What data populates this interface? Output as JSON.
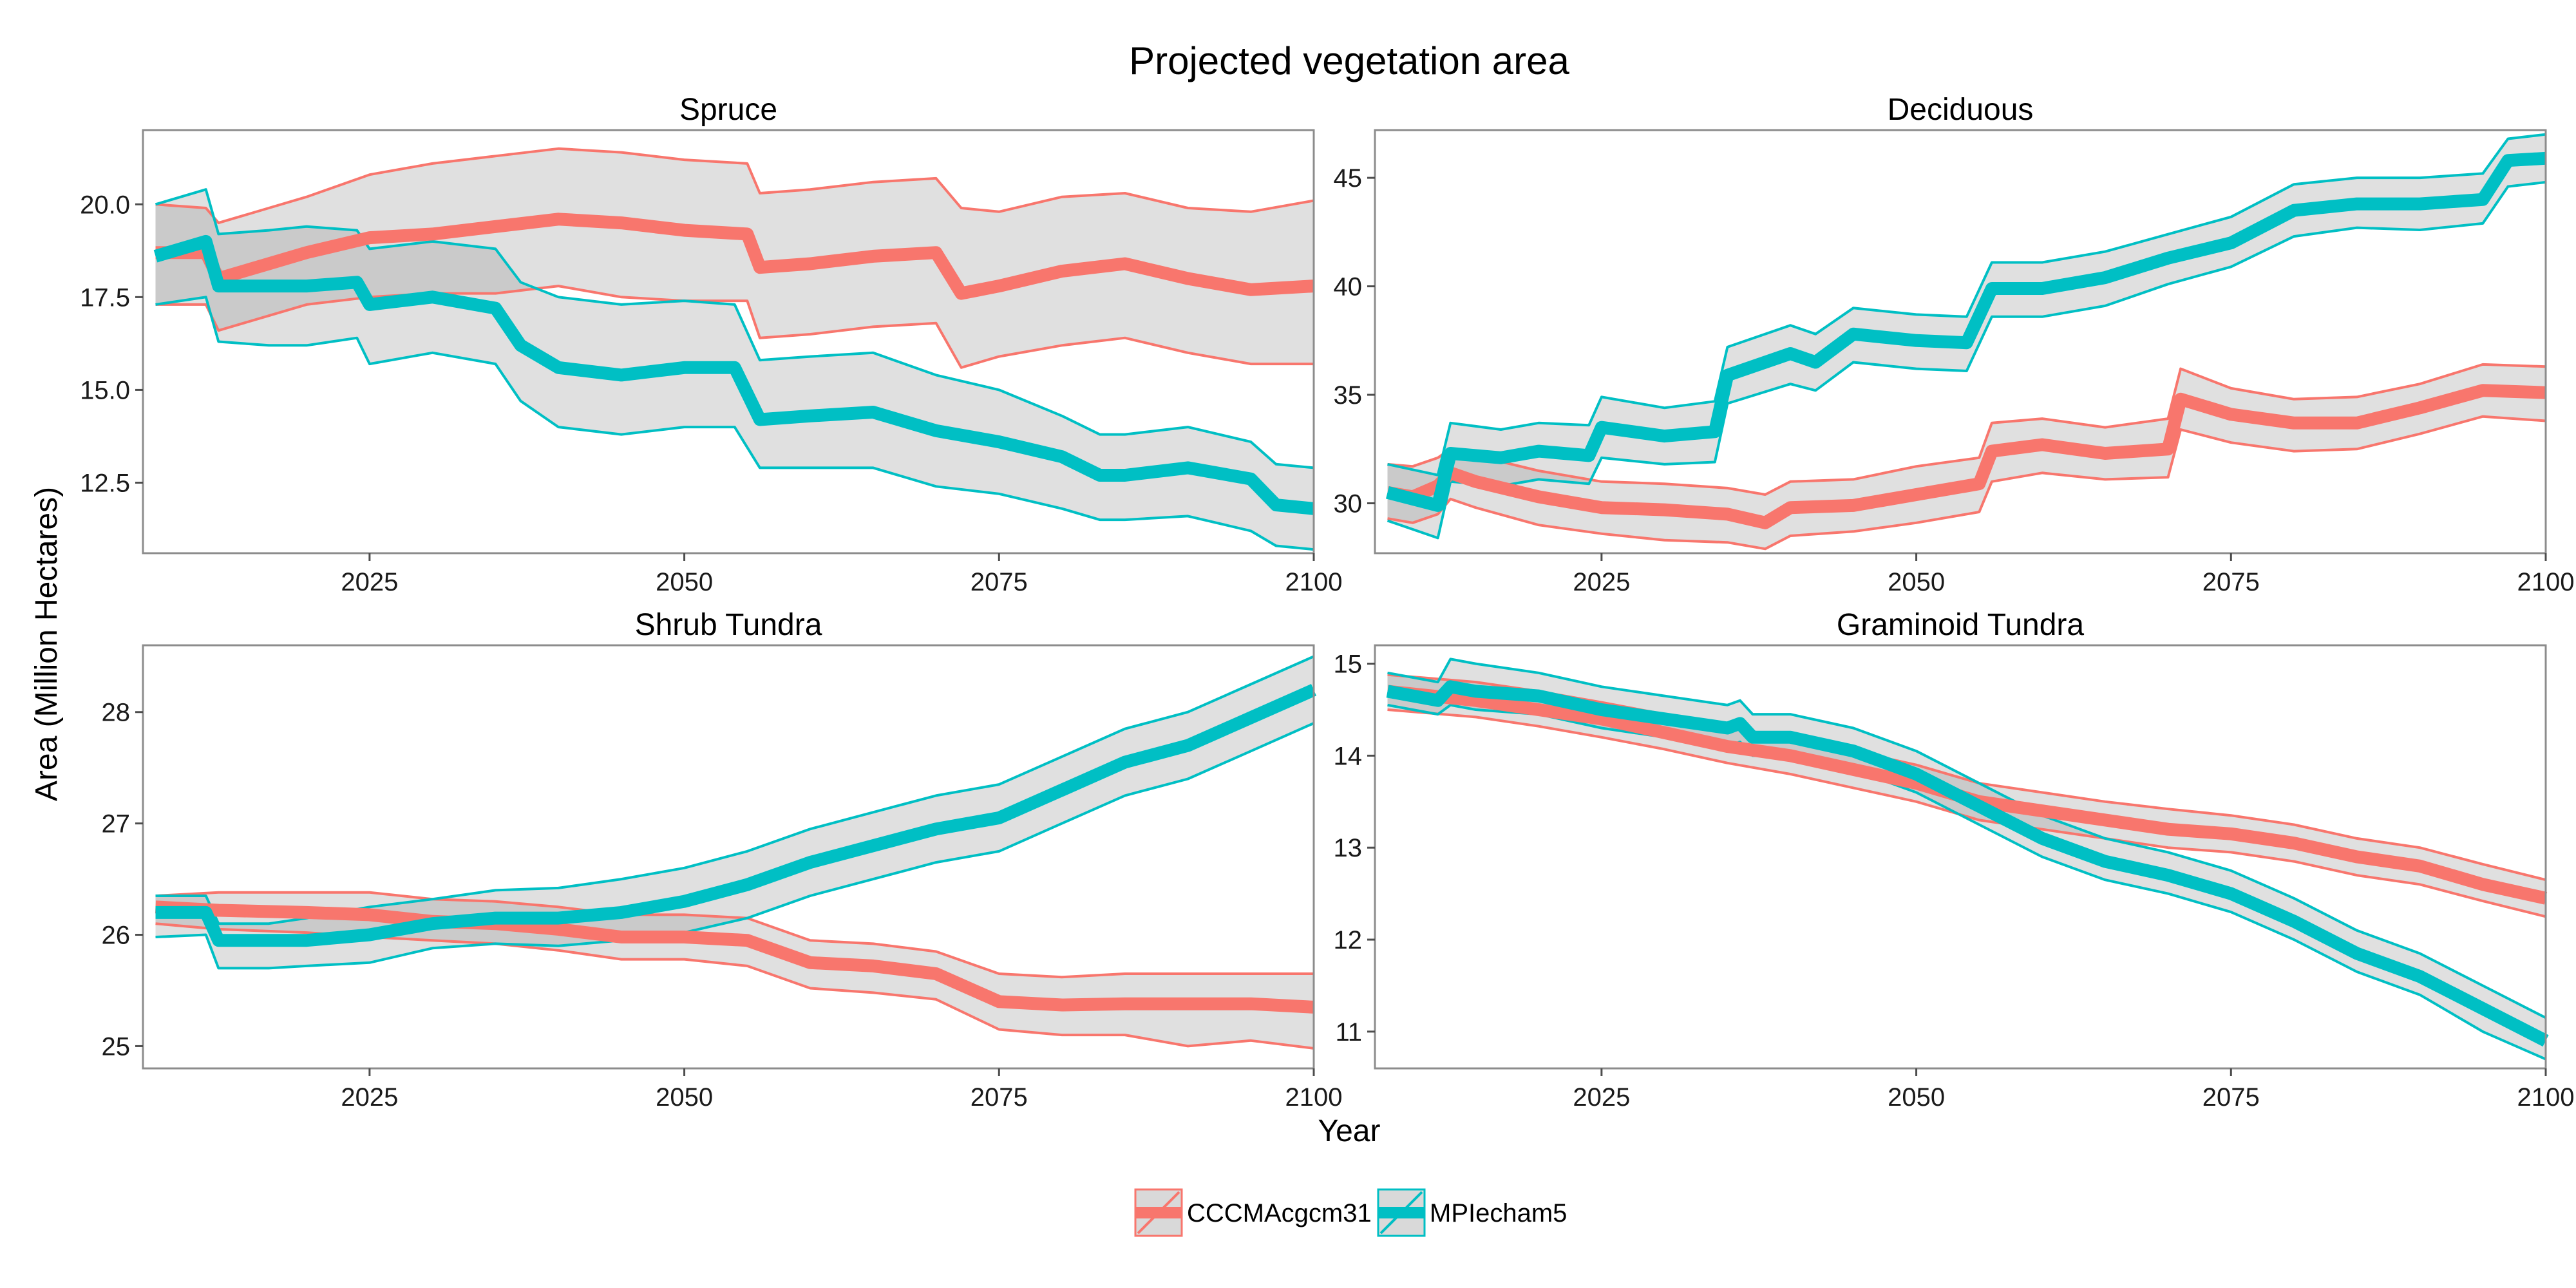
{
  "title": "Projected vegetation area",
  "xlabel": "Year",
  "ylabel": "Area (Million Hectares)",
  "legend": {
    "position": "bottom",
    "items": [
      {
        "label": "CCCMAcgcm31",
        "color": "#F8766D"
      },
      {
        "label": "MPIecham5",
        "color": "#00BFC4"
      }
    ]
  },
  "chart_data": [
    {
      "type": "line",
      "title": "Spruce",
      "xlim": [
        2007,
        2100
      ],
      "ylim": [
        10.6,
        22.0
      ],
      "xticks": [
        2025,
        2050,
        2075,
        2100
      ],
      "yticks": [
        12.5,
        15.0,
        17.5,
        20.0
      ],
      "ytick_labels": [
        "12.5",
        "15.0",
        "17.5",
        "20.0"
      ],
      "series": [
        {
          "name": "CCCMAcgcm31",
          "color": "#F8766D",
          "x": [
            2008,
            2012,
            2013,
            2017,
            2020,
            2025,
            2030,
            2035,
            2040,
            2045,
            2050,
            2055,
            2056,
            2060,
            2065,
            2070,
            2072,
            2075,
            2080,
            2085,
            2090,
            2095,
            2100
          ],
          "y": [
            18.7,
            18.7,
            18.0,
            18.4,
            18.7,
            19.1,
            19.2,
            19.4,
            19.6,
            19.5,
            19.3,
            19.2,
            18.3,
            18.4,
            18.6,
            18.7,
            17.6,
            17.8,
            18.2,
            18.4,
            18.0,
            17.7,
            17.8
          ],
          "upper": [
            20.0,
            19.9,
            19.5,
            19.9,
            20.2,
            20.8,
            21.1,
            21.3,
            21.5,
            21.4,
            21.2,
            21.1,
            20.3,
            20.4,
            20.6,
            20.7,
            19.9,
            19.8,
            20.2,
            20.3,
            19.9,
            19.8,
            20.1
          ],
          "lower": [
            17.3,
            17.3,
            16.6,
            17.0,
            17.3,
            17.5,
            17.6,
            17.6,
            17.8,
            17.5,
            17.4,
            17.4,
            16.4,
            16.5,
            16.7,
            16.8,
            15.6,
            15.9,
            16.2,
            16.4,
            16.0,
            15.7,
            15.7
          ]
        },
        {
          "name": "MPIecham5",
          "color": "#00BFC4",
          "x": [
            2008,
            2012,
            2013,
            2017,
            2020,
            2024,
            2025,
            2030,
            2035,
            2037,
            2040,
            2045,
            2050,
            2054,
            2056,
            2060,
            2065,
            2070,
            2075,
            2080,
            2083,
            2085,
            2090,
            2095,
            2097,
            2100
          ],
          "y": [
            18.6,
            19.0,
            17.8,
            17.8,
            17.8,
            17.9,
            17.3,
            17.5,
            17.2,
            16.2,
            15.6,
            15.4,
            15.6,
            15.6,
            14.2,
            14.3,
            14.4,
            13.9,
            13.6,
            13.2,
            12.7,
            12.7,
            12.9,
            12.6,
            11.9,
            11.8
          ],
          "upper": [
            20.0,
            20.4,
            19.2,
            19.3,
            19.4,
            19.3,
            18.8,
            19.0,
            18.8,
            17.9,
            17.5,
            17.3,
            17.4,
            17.3,
            15.8,
            15.9,
            16.0,
            15.4,
            15.0,
            14.3,
            13.8,
            13.8,
            14.0,
            13.6,
            13.0,
            12.9
          ],
          "lower": [
            17.3,
            17.5,
            16.3,
            16.2,
            16.2,
            16.4,
            15.7,
            16.0,
            15.7,
            14.7,
            14.0,
            13.8,
            14.0,
            14.0,
            12.9,
            12.9,
            12.9,
            12.4,
            12.2,
            11.8,
            11.5,
            11.5,
            11.6,
            11.2,
            10.8,
            10.7
          ]
        }
      ]
    },
    {
      "type": "line",
      "title": "Deciduous",
      "xlim": [
        2007,
        2100
      ],
      "ylim": [
        27.7,
        47.2
      ],
      "xticks": [
        2025,
        2050,
        2075,
        2100
      ],
      "yticks": [
        30,
        35,
        40,
        45
      ],
      "ytick_labels": [
        "30",
        "35",
        "40",
        "45"
      ],
      "series": [
        {
          "name": "CCCMAcgcm31",
          "color": "#F8766D",
          "x": [
            2008,
            2010,
            2012,
            2013,
            2015,
            2020,
            2025,
            2030,
            2035,
            2038,
            2040,
            2045,
            2050,
            2055,
            2056,
            2060,
            2065,
            2070,
            2071,
            2075,
            2080,
            2085,
            2090,
            2095,
            2100
          ],
          "y": [
            30.5,
            30.3,
            30.8,
            31.4,
            31.0,
            30.3,
            29.8,
            29.7,
            29.5,
            29.1,
            29.8,
            29.9,
            30.4,
            30.9,
            32.4,
            32.7,
            32.3,
            32.5,
            34.8,
            34.1,
            33.7,
            33.7,
            34.4,
            35.2,
            35.1
          ],
          "upper": [
            31.8,
            31.7,
            32.1,
            32.5,
            32.2,
            31.5,
            31.0,
            30.9,
            30.7,
            30.4,
            31.0,
            31.1,
            31.7,
            32.1,
            33.7,
            33.9,
            33.5,
            33.9,
            36.2,
            35.3,
            34.8,
            34.9,
            35.5,
            36.4,
            36.3
          ],
          "lower": [
            29.3,
            29.1,
            29.5,
            30.2,
            29.8,
            29.0,
            28.6,
            28.3,
            28.2,
            27.9,
            28.5,
            28.7,
            29.1,
            29.6,
            31.0,
            31.4,
            31.1,
            31.2,
            33.4,
            32.8,
            32.4,
            32.5,
            33.2,
            34.0,
            33.8
          ],
          "band_edges": [
            {
              "x": [
                2008,
                2012,
                2013,
                2020,
                2025,
                2030,
                2038,
                2040,
                2045,
                2050,
                2055,
                2056,
                2060,
                2065,
                2070,
                2071,
                2075,
                2080,
                2085,
                2090,
                2095,
                2100
              ],
              "y": [
                31.8,
                32.1,
                32.5,
                31.5,
                31.0,
                30.9,
                30.4,
                31.0,
                31.1,
                31.7,
                32.1,
                33.7,
                33.9,
                33.5,
                33.9,
                36.2,
                35.3,
                34.8,
                34.9,
                35.5,
                36.4,
                36.3
              ]
            }
          ]
        },
        {
          "name": "MPIecham5",
          "color": "#00BFC4",
          "x": [
            2008,
            2012,
            2013,
            2017,
            2020,
            2024,
            2025,
            2030,
            2034,
            2035,
            2040,
            2042,
            2045,
            2050,
            2054,
            2056,
            2060,
            2065,
            2070,
            2075,
            2080,
            2085,
            2090,
            2095,
            2097,
            2100
          ],
          "y": [
            30.5,
            29.9,
            32.3,
            32.1,
            32.4,
            32.2,
            33.5,
            33.1,
            33.3,
            35.9,
            36.9,
            36.5,
            37.8,
            37.5,
            37.4,
            39.9,
            39.9,
            40.4,
            41.3,
            42.0,
            43.5,
            43.8,
            43.8,
            44.0,
            45.8,
            45.9
          ],
          "upper": [
            31.8,
            31.3,
            33.7,
            33.4,
            33.7,
            33.6,
            34.9,
            34.4,
            34.7,
            37.2,
            38.2,
            37.8,
            39.0,
            38.7,
            38.6,
            41.1,
            41.1,
            41.6,
            42.4,
            43.2,
            44.7,
            45.0,
            45.0,
            45.2,
            46.8,
            47.0
          ],
          "lower": [
            29.2,
            28.4,
            31.0,
            30.8,
            31.1,
            30.9,
            32.1,
            31.8,
            31.9,
            34.6,
            35.5,
            35.2,
            36.5,
            36.2,
            36.1,
            38.6,
            38.6,
            39.1,
            40.1,
            40.9,
            42.3,
            42.7,
            42.6,
            42.9,
            44.6,
            44.8
          ]
        }
      ]
    },
    {
      "type": "line",
      "title": "Shrub Tundra",
      "xlim": [
        2007,
        2100
      ],
      "ylim": [
        24.8,
        28.6
      ],
      "xticks": [
        2025,
        2050,
        2075,
        2100
      ],
      "yticks": [
        25,
        26,
        27,
        28
      ],
      "ytick_labels": [
        "25",
        "26",
        "27",
        "28"
      ],
      "series": [
        {
          "name": "CCCMAcgcm31",
          "color": "#F8766D",
          "x": [
            2008,
            2013,
            2020,
            2025,
            2030,
            2035,
            2040,
            2045,
            2050,
            2055,
            2060,
            2065,
            2070,
            2075,
            2080,
            2085,
            2090,
            2095,
            2100
          ],
          "y": [
            26.25,
            26.22,
            26.2,
            26.18,
            26.12,
            26.1,
            26.05,
            25.98,
            25.98,
            25.95,
            25.75,
            25.72,
            25.65,
            25.4,
            25.37,
            25.38,
            25.38,
            25.38,
            25.35
          ],
          "upper": [
            26.35,
            26.38,
            26.38,
            26.38,
            26.32,
            26.3,
            26.25,
            26.18,
            26.18,
            26.15,
            25.95,
            25.92,
            25.85,
            25.65,
            25.62,
            25.65,
            25.65,
            25.65,
            25.65
          ],
          "lower": [
            26.1,
            26.05,
            26.02,
            25.98,
            25.95,
            25.92,
            25.86,
            25.78,
            25.78,
            25.72,
            25.52,
            25.48,
            25.42,
            25.15,
            25.1,
            25.1,
            25.0,
            25.05,
            24.98
          ]
        },
        {
          "name": "MPIecham5",
          "color": "#00BFC4",
          "x": [
            2008,
            2012,
            2013,
            2017,
            2020,
            2025,
            2030,
            2035,
            2040,
            2045,
            2050,
            2055,
            2060,
            2065,
            2070,
            2075,
            2080,
            2085,
            2090,
            2095,
            2100
          ],
          "y": [
            26.2,
            26.2,
            25.95,
            25.95,
            25.95,
            26.0,
            26.1,
            26.15,
            26.15,
            26.2,
            26.3,
            26.45,
            26.65,
            26.8,
            26.95,
            27.05,
            27.3,
            27.55,
            27.7,
            27.95,
            28.2
          ],
          "upper": [
            26.35,
            26.35,
            26.1,
            26.1,
            26.15,
            26.25,
            26.32,
            26.4,
            26.42,
            26.5,
            26.6,
            26.75,
            26.95,
            27.1,
            27.25,
            27.35,
            27.6,
            27.85,
            28.0,
            28.25,
            28.5
          ],
          "lower": [
            25.98,
            26.0,
            25.7,
            25.7,
            25.72,
            25.75,
            25.88,
            25.92,
            25.9,
            25.95,
            26.02,
            26.15,
            26.35,
            26.5,
            26.65,
            26.75,
            27.0,
            27.25,
            27.4,
            27.65,
            27.9
          ]
        }
      ]
    },
    {
      "type": "line",
      "title": "Graminoid Tundra",
      "xlim": [
        2007,
        2100
      ],
      "ylim": [
        10.6,
        15.2
      ],
      "xticks": [
        2025,
        2050,
        2075,
        2100
      ],
      "yticks": [
        11,
        12,
        13,
        14,
        15
      ],
      "ytick_labels": [
        "11",
        "12",
        "13",
        "14",
        "15"
      ],
      "series": [
        {
          "name": "CCCMAcgcm31",
          "color": "#F8766D",
          "x": [
            2008,
            2015,
            2020,
            2025,
            2030,
            2035,
            2040,
            2045,
            2050,
            2055,
            2060,
            2065,
            2070,
            2075,
            2080,
            2085,
            2090,
            2095,
            2100
          ],
          "y": [
            14.7,
            14.6,
            14.5,
            14.4,
            14.25,
            14.1,
            14.0,
            13.85,
            13.7,
            13.5,
            13.4,
            13.3,
            13.2,
            13.15,
            13.05,
            12.9,
            12.8,
            12.6,
            12.45
          ],
          "upper": [
            14.88,
            14.8,
            14.7,
            14.58,
            14.45,
            14.3,
            14.2,
            14.05,
            13.9,
            13.7,
            13.6,
            13.5,
            13.42,
            13.35,
            13.25,
            13.1,
            13.0,
            12.82,
            12.65
          ],
          "lower": [
            14.5,
            14.42,
            14.32,
            14.2,
            14.07,
            13.92,
            13.8,
            13.65,
            13.5,
            13.3,
            13.2,
            13.1,
            13.0,
            12.95,
            12.85,
            12.7,
            12.6,
            12.42,
            12.25
          ]
        },
        {
          "name": "MPIecham5",
          "color": "#00BFC4",
          "x": [
            2008,
            2012,
            2013,
            2015,
            2020,
            2025,
            2030,
            2035,
            2036,
            2037,
            2040,
            2045,
            2050,
            2055,
            2060,
            2065,
            2070,
            2075,
            2080,
            2085,
            2090,
            2095,
            2100
          ],
          "y": [
            14.7,
            14.6,
            14.75,
            14.7,
            14.65,
            14.5,
            14.4,
            14.3,
            14.35,
            14.2,
            14.2,
            14.05,
            13.8,
            13.45,
            13.1,
            12.85,
            12.7,
            12.5,
            12.2,
            11.85,
            11.6,
            11.25,
            10.9
          ],
          "upper": [
            14.9,
            14.8,
            15.05,
            15.0,
            14.9,
            14.75,
            14.65,
            14.55,
            14.6,
            14.45,
            14.45,
            14.3,
            14.05,
            13.7,
            13.35,
            13.1,
            12.95,
            12.75,
            12.45,
            12.1,
            11.85,
            11.5,
            11.15
          ],
          "lower": [
            14.55,
            14.45,
            14.55,
            14.5,
            14.45,
            14.3,
            14.2,
            14.1,
            14.15,
            14.0,
            14.0,
            13.85,
            13.6,
            13.25,
            12.9,
            12.65,
            12.5,
            12.3,
            12.0,
            11.65,
            11.4,
            11.0,
            10.7
          ]
        }
      ]
    }
  ]
}
